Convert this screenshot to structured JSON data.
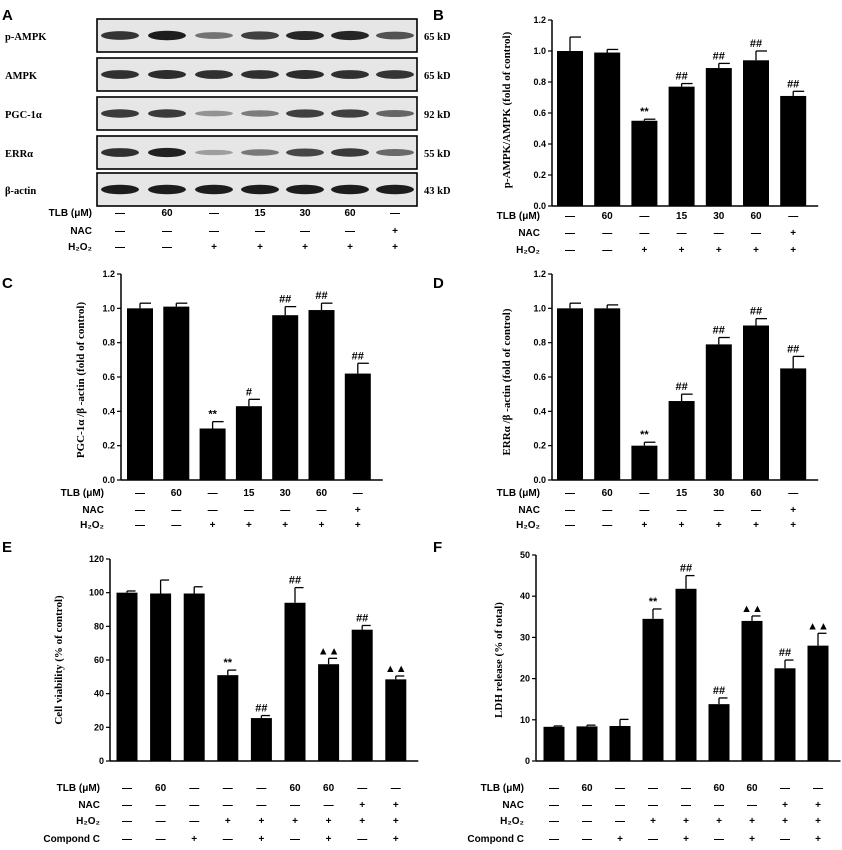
{
  "figure": {
    "panel_labels": [
      "A",
      "B",
      "C",
      "D",
      "E",
      "F"
    ]
  },
  "blot": {
    "rows": [
      {
        "label": "p-AMPK",
        "kd": "65 kD",
        "intensity": [
          0.78,
          0.9,
          0.45,
          0.72,
          0.85,
          0.86,
          0.62
        ]
      },
      {
        "label": "AMPK",
        "kd": "65 kD",
        "intensity": [
          0.8,
          0.82,
          0.8,
          0.8,
          0.82,
          0.8,
          0.78
        ]
      },
      {
        "label": "PGC-1α",
        "kd": "92 kD",
        "intensity": [
          0.75,
          0.75,
          0.28,
          0.4,
          0.72,
          0.72,
          0.52
        ]
      },
      {
        "label": "ERRα",
        "kd": "55 kD",
        "intensity": [
          0.8,
          0.88,
          0.22,
          0.42,
          0.68,
          0.75,
          0.5
        ]
      },
      {
        "label": "β-actin",
        "kd": "43 kD",
        "intensity": [
          0.9,
          0.9,
          0.9,
          0.9,
          0.9,
          0.9,
          0.9
        ]
      }
    ],
    "conditions": [
      {
        "label": "TLB (μM)",
        "values": [
          "—",
          "60",
          "—",
          "15",
          "30",
          "60",
          "—"
        ]
      },
      {
        "label": "NAC",
        "values": [
          "—",
          "—",
          "—",
          "—",
          "—",
          "—",
          "+"
        ]
      },
      {
        "label": "H₂O₂",
        "values": [
          "—",
          "—",
          "+",
          "+",
          "+",
          "+",
          "+"
        ]
      }
    ]
  },
  "chart_data": [
    {
      "panel": "B",
      "type": "bar",
      "ylabel": "p-AMPK/AMPK (fold of control)",
      "ylim": [
        0,
        1.2
      ],
      "yticks": [
        "0.0",
        "0.2",
        "0.4",
        "0.6",
        "0.8",
        "1.0",
        "1.2"
      ],
      "values": [
        1.0,
        0.99,
        0.55,
        0.77,
        0.89,
        0.94,
        0.71
      ],
      "errors": [
        0.09,
        0.02,
        0.01,
        0.02,
        0.03,
        0.06,
        0.03
      ],
      "annotations": [
        "",
        "",
        "**",
        "##",
        "##",
        "##",
        "##"
      ],
      "conditions": [
        {
          "label": "TLB (μM)",
          "values": [
            "—",
            "60",
            "—",
            "15",
            "30",
            "60",
            "—"
          ]
        },
        {
          "label": "NAC",
          "values": [
            "—",
            "—",
            "—",
            "—",
            "—",
            "—",
            "+"
          ]
        },
        {
          "label": "H₂O₂",
          "values": [
            "—",
            "—",
            "+",
            "+",
            "+",
            "+",
            "+"
          ]
        }
      ]
    },
    {
      "panel": "C",
      "type": "bar",
      "ylabel": "PGC-1α /β -actin (fold of control)",
      "ylim": [
        0,
        1.2
      ],
      "yticks": [
        "0.0",
        "0.2",
        "0.4",
        "0.6",
        "0.8",
        "1.0",
        "1.2"
      ],
      "values": [
        1.0,
        1.01,
        0.3,
        0.43,
        0.96,
        0.99,
        0.62
      ],
      "errors": [
        0.03,
        0.02,
        0.04,
        0.04,
        0.05,
        0.04,
        0.06
      ],
      "annotations": [
        "",
        "",
        "**",
        "#",
        "##",
        "##",
        "##"
      ],
      "conditions": [
        {
          "label": "TLB (μM)",
          "values": [
            "—",
            "60",
            "—",
            "15",
            "30",
            "60",
            "—"
          ]
        },
        {
          "label": "NAC",
          "values": [
            "—",
            "—",
            "—",
            "—",
            "—",
            "—",
            "+"
          ]
        },
        {
          "label": "H₂O₂",
          "values": [
            "—",
            "—",
            "+",
            "+",
            "+",
            "+",
            "+"
          ]
        }
      ]
    },
    {
      "panel": "D",
      "type": "bar",
      "ylabel": "ERRα /β -actin (fold of control)",
      "ylim": [
        0,
        1.2
      ],
      "yticks": [
        "0.0",
        "0.2",
        "0.4",
        "0.6",
        "0.8",
        "1.0",
        "1.2"
      ],
      "values": [
        1.0,
        1.0,
        0.2,
        0.46,
        0.79,
        0.9,
        0.65
      ],
      "errors": [
        0.03,
        0.02,
        0.02,
        0.04,
        0.04,
        0.04,
        0.07
      ],
      "annotations": [
        "",
        "",
        "**",
        "##",
        "##",
        "##",
        "##"
      ],
      "conditions": [
        {
          "label": "TLB (μM)",
          "values": [
            "—",
            "60",
            "—",
            "15",
            "30",
            "60",
            "—"
          ]
        },
        {
          "label": "NAC",
          "values": [
            "—",
            "—",
            "—",
            "—",
            "—",
            "—",
            "+"
          ]
        },
        {
          "label": "H₂O₂",
          "values": [
            "—",
            "—",
            "+",
            "+",
            "+",
            "+",
            "+"
          ]
        }
      ]
    },
    {
      "panel": "E",
      "type": "bar",
      "ylabel": "Cell viability (% of control)",
      "ylim": [
        0,
        120
      ],
      "yticks": [
        "0",
        "20",
        "40",
        "60",
        "80",
        "100",
        "120"
      ],
      "values": [
        100,
        99.5,
        99.5,
        51,
        25.5,
        94,
        57.5,
        78,
        48.5
      ],
      "errors": [
        1,
        8,
        4,
        3,
        1.5,
        9,
        3.5,
        2.5,
        2
      ],
      "annotations": [
        "",
        "",
        "",
        "**",
        "##",
        "##",
        "▲▲",
        "##",
        "▲▲"
      ],
      "conditions": [
        {
          "label": "TLB (μM)",
          "values": [
            "—",
            "60",
            "—",
            "—",
            "—",
            "60",
            "60",
            "—",
            "—"
          ]
        },
        {
          "label": "NAC",
          "values": [
            "—",
            "—",
            "—",
            "—",
            "—",
            "—",
            "—",
            "+",
            "+"
          ]
        },
        {
          "label": "H₂O₂",
          "values": [
            "—",
            "—",
            "—",
            "+",
            "+",
            "+",
            "+",
            "+",
            "+"
          ]
        },
        {
          "label": "Compond C",
          "values": [
            "—",
            "—",
            "+",
            "—",
            "+",
            "—",
            "+",
            "—",
            "+"
          ]
        }
      ]
    },
    {
      "panel": "F",
      "type": "bar",
      "ylabel": "LDH release (% of total)",
      "ylim": [
        0,
        50
      ],
      "yticks": [
        "0",
        "10",
        "20",
        "30",
        "40",
        "50"
      ],
      "values": [
        8.3,
        8.4,
        8.5,
        34.5,
        41.8,
        13.8,
        34,
        22.5,
        28
      ],
      "errors": [
        0.2,
        0.3,
        1.6,
        2.4,
        3.2,
        1.5,
        1.2,
        2,
        3
      ],
      "annotations": [
        "",
        "",
        "",
        "**",
        "##",
        "##",
        "▲▲",
        "##",
        "▲▲"
      ],
      "conditions": [
        {
          "label": "TLB (μM)",
          "values": [
            "—",
            "60",
            "—",
            "—",
            "—",
            "60",
            "60",
            "—",
            "—"
          ]
        },
        {
          "label": "NAC",
          "values": [
            "—",
            "—",
            "—",
            "—",
            "—",
            "—",
            "—",
            "+",
            "+"
          ]
        },
        {
          "label": "H₂O₂",
          "values": [
            "—",
            "—",
            "—",
            "+",
            "+",
            "+",
            "+",
            "+",
            "+"
          ]
        },
        {
          "label": "Compond C",
          "values": [
            "—",
            "—",
            "+",
            "—",
            "+",
            "—",
            "+",
            "—",
            "+"
          ]
        }
      ]
    }
  ]
}
